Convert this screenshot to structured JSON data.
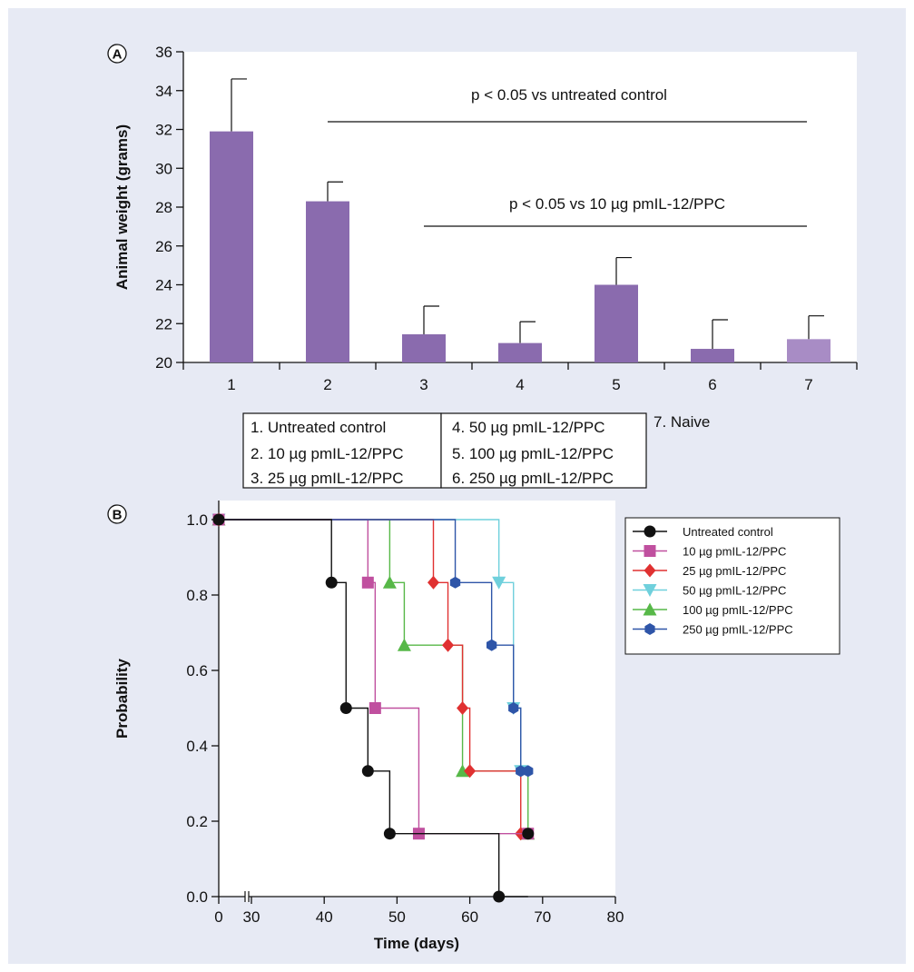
{
  "chart_data": [
    {
      "panel": "A",
      "type": "bar",
      "ylabel": "Animal weight (grams)",
      "ylim": [
        20,
        36
      ],
      "yticks": [
        "20",
        "22",
        "24",
        "26",
        "28",
        "30",
        "32",
        "34",
        "36"
      ],
      "categories": [
        "1",
        "2",
        "3",
        "4",
        "5",
        "6",
        "7"
      ],
      "values": [
        31.9,
        28.3,
        21.45,
        21.0,
        24.0,
        20.7,
        21.2
      ],
      "error_upper": [
        34.6,
        29.3,
        22.9,
        22.1,
        25.4,
        22.2,
        22.4
      ],
      "colors": [
        "#8a6bae",
        "#8a6bae",
        "#8a6bae",
        "#8a6bae",
        "#8a6bae",
        "#8a6bae",
        "#a88cc5"
      ],
      "annotations": [
        {
          "text": "p < 0.05 vs untreated control",
          "from": "2",
          "to": "7"
        },
        {
          "text": "p < 0.05 vs 10 µg pmIL-12/PPC",
          "from": "3",
          "to": "7"
        }
      ],
      "key": [
        "1. Untreated control",
        "4. 50 µg pmIL-12/PPC",
        "7. Naive",
        "2. 10 µg pmIL-12/PPC",
        "5. 100 µg pmIL-12/PPC",
        "3. 25 µg pmIL-12/PPC",
        "6. 250 µg pmIL-12/PPC"
      ]
    },
    {
      "panel": "B",
      "type": "line",
      "subtype": "kaplan-meier step",
      "xlabel": "Time (days)",
      "ylabel": "Probability",
      "xlim": [
        0,
        80
      ],
      "x_axis_break": "between 0 and 30",
      "ylim": [
        0,
        1
      ],
      "xticks": [
        "0",
        "30",
        "40",
        "50",
        "60",
        "70",
        "80"
      ],
      "yticks": [
        "0.0",
        "0.2",
        "0.4",
        "0.6",
        "0.8",
        "1.0"
      ],
      "legend_position": "top-right",
      "series": [
        {
          "name": "Untreated control",
          "color": "#111111",
          "marker": "circle",
          "points": [
            [
              0,
              1.0
            ],
            [
              41,
              0.833
            ],
            [
              43,
              0.5
            ],
            [
              46,
              0.333
            ],
            [
              49,
              0.167
            ],
            [
              64,
              0.0
            ]
          ],
          "censored": [
            [
              68,
              0.167
            ]
          ]
        },
        {
          "name": "10 µg pmIL-12/PPC",
          "color": "#c0509f",
          "marker": "square",
          "points": [
            [
              0,
              1.0
            ],
            [
              46,
              0.833
            ],
            [
              47,
              0.5
            ],
            [
              53,
              0.167
            ]
          ],
          "censored": [
            [
              68,
              0.167
            ]
          ]
        },
        {
          "name": "25 µg pmIL-12/PPC",
          "color": "#e03131",
          "marker": "diamond",
          "points": [
            [
              0,
              1.0
            ],
            [
              55,
              0.833
            ],
            [
              57,
              0.667
            ],
            [
              59,
              0.5
            ],
            [
              60,
              0.333
            ],
            [
              67,
              0.167
            ]
          ],
          "censored": []
        },
        {
          "name": "50 µg pmIL-12/PPC",
          "color": "#6fd0dc",
          "marker": "triangle-down",
          "points": [
            [
              0,
              1.0
            ],
            [
              64,
              0.833
            ],
            [
              66,
              0.5
            ],
            [
              67,
              0.333
            ]
          ],
          "censored": []
        },
        {
          "name": "100 µg pmIL-12/PPC",
          "color": "#57b848",
          "marker": "triangle-up",
          "points": [
            [
              0,
              1.0
            ],
            [
              49,
              0.833
            ],
            [
              51,
              0.667
            ],
            [
              59,
              0.333
            ],
            [
              68,
              0.167
            ]
          ],
          "censored": []
        },
        {
          "name": "250 µg pmIL-12/PPC",
          "color": "#2e55a8",
          "marker": "hexagon",
          "points": [
            [
              0,
              1.0
            ],
            [
              58,
              0.833
            ],
            [
              63,
              0.667
            ],
            [
              66,
              0.5
            ],
            [
              67,
              0.333
            ]
          ],
          "censored": [
            [
              68,
              0.333
            ]
          ]
        }
      ]
    }
  ],
  "panel_labels": [
    "A",
    "B"
  ]
}
